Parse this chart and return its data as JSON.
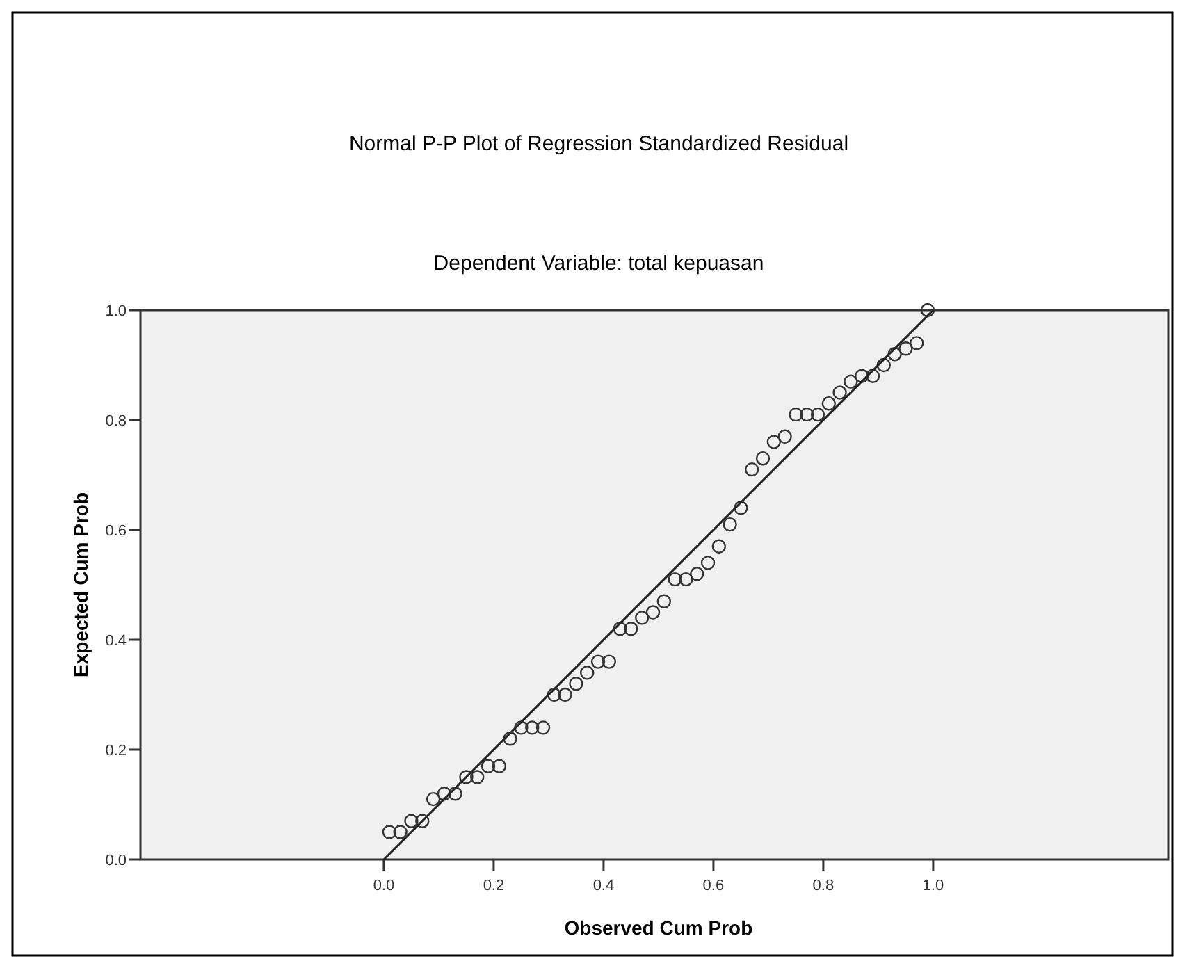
{
  "chart_data": {
    "type": "scatter",
    "title": "Normal P-P Plot of Regression Standardized Residual",
    "subtitle": "Dependent Variable: total kepuasan",
    "xlabel": "Observed Cum Prob",
    "ylabel": "Expected Cum Prob",
    "xlim": [
      -0.443,
      1.428
    ],
    "ylim": [
      0,
      1
    ],
    "xticks": [
      {
        "value": 0,
        "label": "0.0"
      },
      {
        "value": 0.2,
        "label": "0.2"
      },
      {
        "value": 0.4,
        "label": "0.4"
      },
      {
        "value": 0.6,
        "label": "0.6"
      },
      {
        "value": 0.8,
        "label": "0.8"
      },
      {
        "value": 1,
        "label": "1.0"
      }
    ],
    "yticks": [
      {
        "value": 0,
        "label": "0.0"
      },
      {
        "value": 0.2,
        "label": "0.2"
      },
      {
        "value": 0.4,
        "label": "0.4"
      },
      {
        "value": 0.6,
        "label": "0.6"
      },
      {
        "value": 0.8,
        "label": "0.8"
      },
      {
        "value": 1,
        "label": "1.0"
      }
    ],
    "grid": false,
    "marker": "circle",
    "series": [
      {
        "color": "#333333",
        "x": [
          0.01,
          0.03,
          0.05,
          0.07,
          0.09,
          0.11,
          0.13,
          0.15,
          0.17,
          0.19,
          0.21,
          0.23,
          0.25,
          0.27,
          0.29,
          0.31,
          0.33,
          0.35,
          0.37,
          0.39,
          0.41,
          0.43,
          0.45,
          0.47,
          0.49,
          0.51,
          0.53,
          0.55,
          0.57,
          0.59,
          0.61,
          0.63,
          0.65,
          0.67,
          0.69,
          0.71,
          0.73,
          0.75,
          0.77,
          0.79,
          0.81,
          0.83,
          0.85,
          0.87,
          0.89,
          0.91,
          0.93,
          0.95,
          0.97,
          0.99
        ],
        "values": [
          0.05,
          0.05,
          0.07,
          0.07,
          0.11,
          0.12,
          0.12,
          0.15,
          0.15,
          0.17,
          0.17,
          0.22,
          0.24,
          0.24,
          0.24,
          0.3,
          0.3,
          0.32,
          0.34,
          0.36,
          0.36,
          0.42,
          0.42,
          0.44,
          0.45,
          0.47,
          0.51,
          0.51,
          0.52,
          0.54,
          0.57,
          0.61,
          0.64,
          0.71,
          0.73,
          0.76,
          0.77,
          0.81,
          0.81,
          0.81,
          0.83,
          0.85,
          0.87,
          0.88,
          0.88,
          0.9,
          0.92,
          0.93,
          0.94,
          1.0
        ]
      },
      {
        "type": "line",
        "color": "#222222",
        "x": [
          0,
          1
        ],
        "values": [
          0,
          1
        ],
        "marker": "none"
      }
    ]
  }
}
